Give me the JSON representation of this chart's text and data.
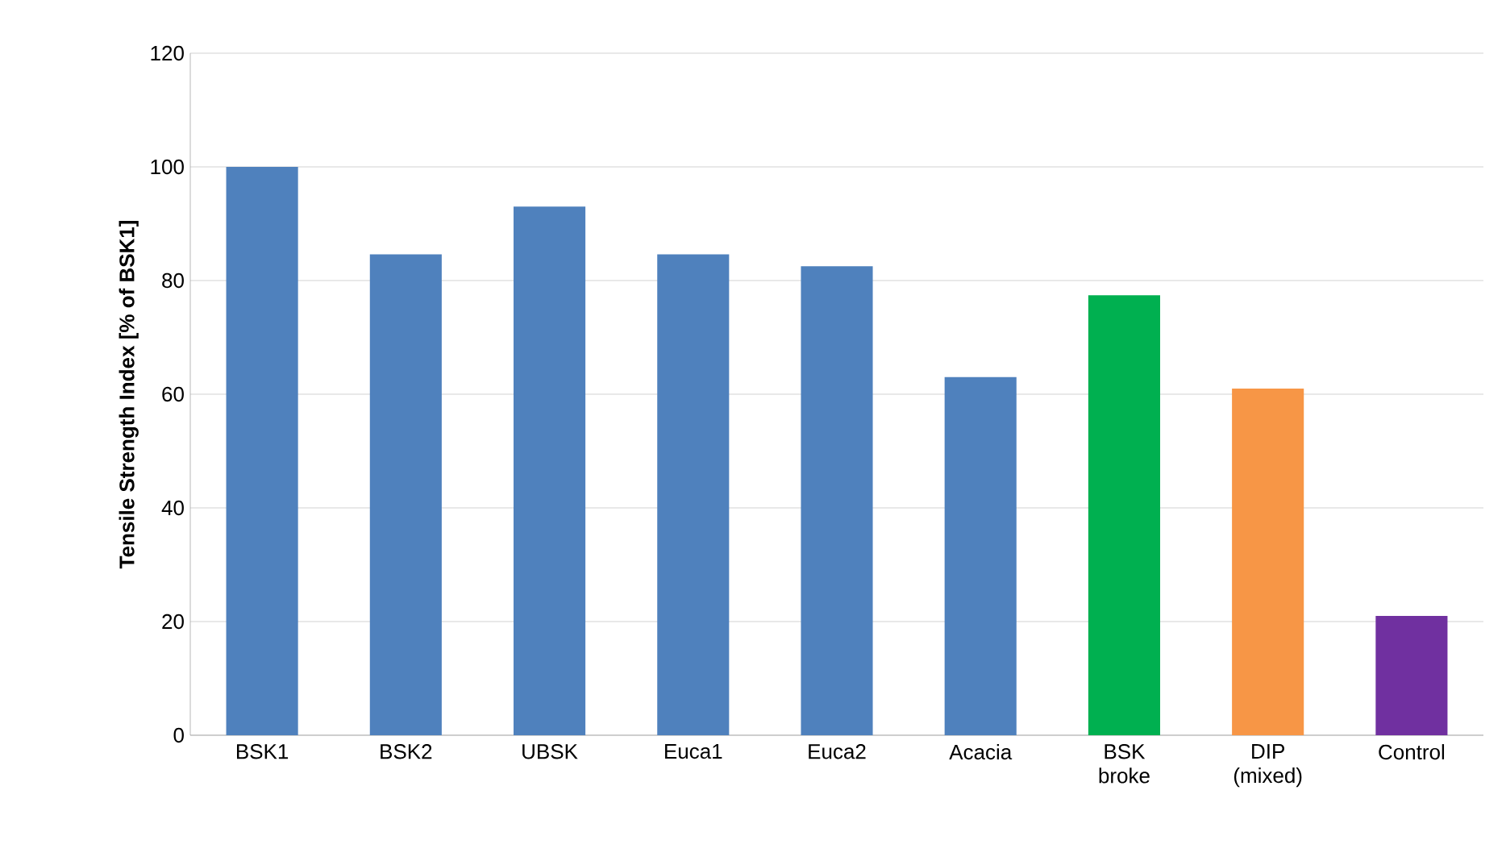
{
  "chart_data": {
    "type": "bar",
    "ylabel": "Tensile Strength Index [% of BSK1]",
    "categories": [
      "BSK1",
      "BSK2",
      "UBSK",
      "Euca1",
      "Euca2",
      "Acacia",
      "BSK broke",
      "DIP (mixed)",
      "Control"
    ],
    "values": [
      100,
      84.6,
      93,
      84.6,
      82.5,
      63,
      77.4,
      61,
      21
    ],
    "colors": [
      "#4f81bd",
      "#4f81bd",
      "#4f81bd",
      "#4f81bd",
      "#4f81bd",
      "#4f81bd",
      "#00b050",
      "#f79646",
      "#7030a0"
    ],
    "ylim": [
      0,
      120
    ],
    "yticks": [
      0,
      20,
      40,
      60,
      80,
      100,
      120
    ],
    "grid": "y"
  }
}
